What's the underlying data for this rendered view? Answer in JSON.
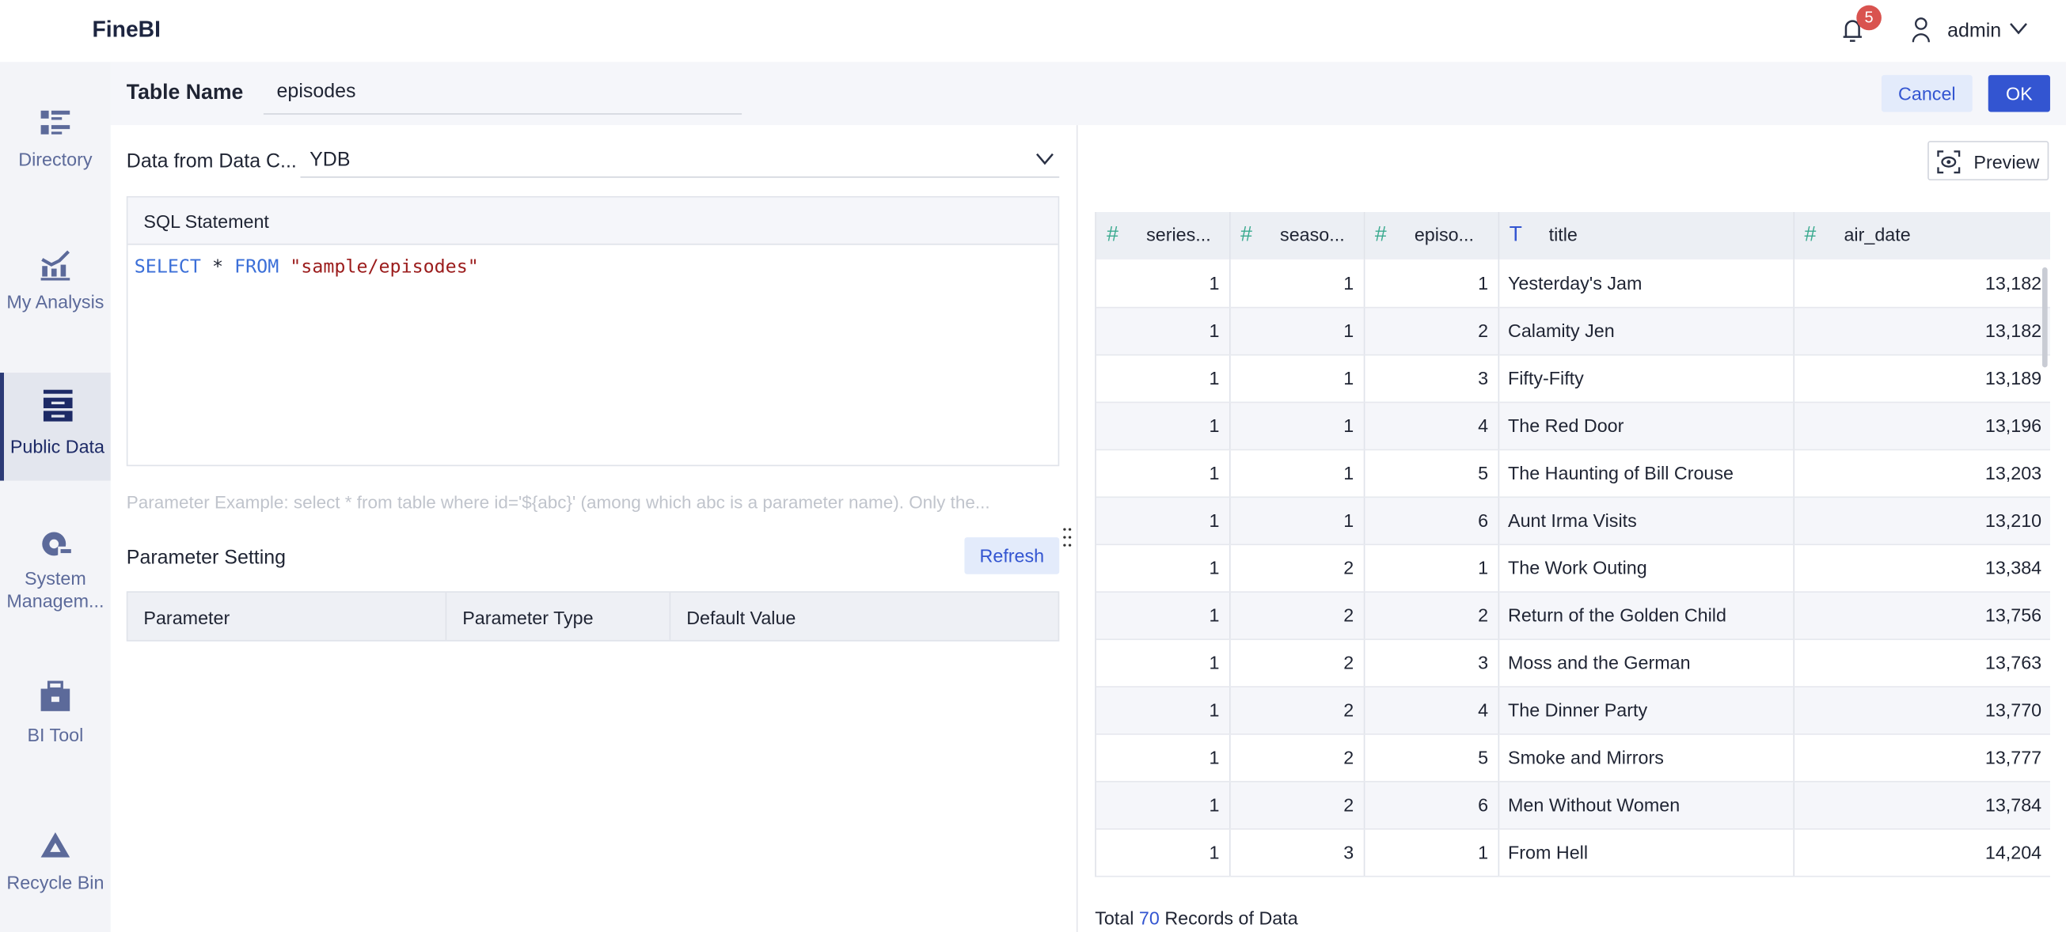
{
  "app": {
    "title": "FineBI",
    "notification_count": "5",
    "user": "admin"
  },
  "sidebar": {
    "items": [
      {
        "label": "Directory",
        "icon": "directory-icon"
      },
      {
        "label": "My Analysis",
        "icon": "analysis-chart-icon"
      },
      {
        "label": "Public Data",
        "icon": "database-icon",
        "active": true
      },
      {
        "label": "System Managem...",
        "icon": "settings-gear-icon"
      },
      {
        "label": "BI Tool",
        "icon": "toolbox-icon"
      },
      {
        "label": "Recycle Bin",
        "icon": "recycle-icon"
      }
    ]
  },
  "header": {
    "table_name_label": "Table Name",
    "table_name_value": "episodes",
    "cancel": "Cancel",
    "ok": "OK"
  },
  "editor": {
    "source_label": "Data from Data C...",
    "source_value": "YDB",
    "sql_title": "SQL Statement",
    "sql": {
      "kw1": "SELECT",
      "star": "*",
      "kw2": "FROM",
      "str": "\"sample/episodes\""
    },
    "hint": "Parameter Example: select * from table where id='${abc}' (among which abc is a parameter name). Only the...",
    "param_title": "Parameter Setting",
    "refresh": "Refresh",
    "param_columns": [
      "Parameter",
      "Parameter Type",
      "Default Value"
    ]
  },
  "preview": {
    "button": "Preview",
    "columns": [
      {
        "name": "series...",
        "type": "number"
      },
      {
        "name": "seaso...",
        "type": "number"
      },
      {
        "name": "episo...",
        "type": "number"
      },
      {
        "name": "title",
        "type": "text"
      },
      {
        "name": "air_date",
        "type": "number"
      }
    ],
    "rows": [
      [
        "1",
        "1",
        "1",
        "Yesterday's Jam",
        "13,182"
      ],
      [
        "1",
        "1",
        "2",
        "Calamity Jen",
        "13,182"
      ],
      [
        "1",
        "1",
        "3",
        "Fifty-Fifty",
        "13,189"
      ],
      [
        "1",
        "1",
        "4",
        "The Red Door",
        "13,196"
      ],
      [
        "1",
        "1",
        "5",
        "The Haunting of Bill Crouse",
        "13,203"
      ],
      [
        "1",
        "1",
        "6",
        "Aunt Irma Visits",
        "13,210"
      ],
      [
        "1",
        "2",
        "1",
        "The Work Outing",
        "13,384"
      ],
      [
        "1",
        "2",
        "2",
        "Return of the Golden Child",
        "13,756"
      ],
      [
        "1",
        "2",
        "3",
        "Moss and the German",
        "13,763"
      ],
      [
        "1",
        "2",
        "4",
        "The Dinner Party",
        "13,770"
      ],
      [
        "1",
        "2",
        "5",
        "Smoke and Mirrors",
        "13,777"
      ],
      [
        "1",
        "2",
        "6",
        "Men Without Women",
        "13,784"
      ],
      [
        "1",
        "3",
        "1",
        "From Hell",
        "14,204"
      ]
    ],
    "footer": {
      "prefix": "Total",
      "count": "70",
      "suffix": "Records of Data"
    }
  },
  "colors": {
    "accent": "#3355d1",
    "number_icon": "#3aaa8f",
    "badge": "#d9534f",
    "sql_keyword": "#3b6fd8",
    "sql_string": "#9b1c1c"
  }
}
